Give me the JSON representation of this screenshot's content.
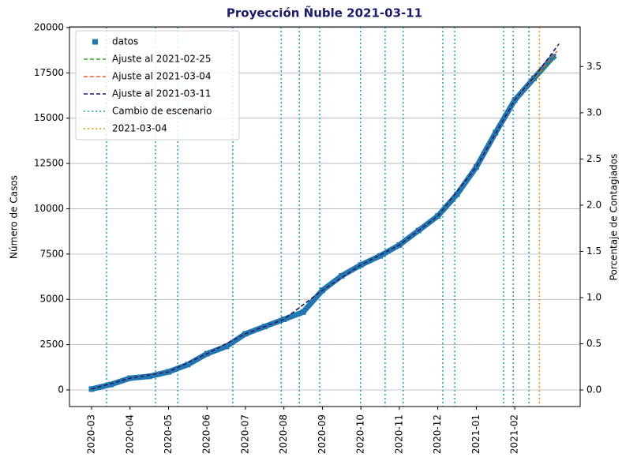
{
  "chart_data": {
    "type": "line",
    "title": "Proyección Ñuble 2021-03-11",
    "ylabel": "Número de Casos",
    "y2label": "Porcentaje de Contagiados",
    "xlim": [
      -0.575,
      12.7
    ],
    "xticks": [
      {
        "value": 0,
        "label": "2020-03"
      },
      {
        "value": 1,
        "label": "2020-04"
      },
      {
        "value": 2,
        "label": "2020-05"
      },
      {
        "value": 3,
        "label": "2020-06"
      },
      {
        "value": 4,
        "label": "2020-07"
      },
      {
        "value": 5,
        "label": "2020-08"
      },
      {
        "value": 6,
        "label": "2020-09"
      },
      {
        "value": 7,
        "label": "2020-10"
      },
      {
        "value": 8,
        "label": "2020-11"
      },
      {
        "value": 9,
        "label": "2020-12"
      },
      {
        "value": 10,
        "label": "2021-01"
      },
      {
        "value": 11,
        "label": "2021-02"
      }
    ],
    "ylim": [
      -915,
      20040
    ],
    "yticks": [
      0,
      2500,
      5000,
      7500,
      10000,
      12500,
      15000,
      17500,
      20000
    ],
    "y2lim": [
      -0.179,
      3.93
    ],
    "y2ticks": [
      {
        "value": 0,
        "label": "0.0"
      },
      0.5,
      {
        "value": 1,
        "label": "1.0"
      },
      1.5,
      {
        "value": 2,
        "label": "2.0"
      },
      2.5,
      {
        "value": 3,
        "label": "3.0"
      },
      3.5
    ],
    "grid": true,
    "legend": "upper left",
    "series": [
      {
        "name": "datos",
        "color": "#1f77b4",
        "marker": "square",
        "x": [
          0,
          0.5,
          1,
          1.5,
          2,
          2.5,
          3,
          3.5,
          4,
          4.5,
          5,
          5.5,
          6,
          6.5,
          7,
          7.5,
          8,
          8.5,
          9,
          9.5,
          10,
          10.5,
          11,
          11.5,
          12
        ],
        "values": [
          50,
          300,
          650,
          750,
          1000,
          1400,
          2000,
          2400,
          3100,
          3500,
          3900,
          4300,
          5500,
          6300,
          6900,
          7400,
          8000,
          8800,
          9600,
          10800,
          12300,
          14200,
          16000,
          17200,
          18400
        ]
      },
      {
        "name": "Ajuste al 2021-02-25",
        "color": "#2ca02c",
        "style": "dashed",
        "x": [
          0,
          1,
          2,
          3,
          4,
          5,
          6,
          7,
          8,
          9,
          10,
          11,
          11.5,
          12.1
        ],
        "values": [
          50,
          650,
          1000,
          2000,
          3100,
          3900,
          5500,
          6900,
          8000,
          9600,
          12300,
          16000,
          17150,
          18400
        ]
      },
      {
        "name": "Ajuste al 2021-03-04",
        "color": "#ff5722",
        "style": "dashed",
        "x": [
          0,
          1,
          2,
          3,
          4,
          5,
          6,
          7,
          8,
          9,
          10,
          11,
          11.5,
          12.1
        ],
        "values": [
          50,
          650,
          1000,
          2000,
          3100,
          3900,
          5500,
          6900,
          8000,
          9600,
          12300,
          16000,
          17200,
          18700
        ]
      },
      {
        "name": "Ajuste al 2021-03-11",
        "color": "#191970",
        "style": "dashed",
        "x": [
          0,
          1,
          2,
          3,
          4,
          5,
          6,
          7,
          8,
          9,
          10,
          11,
          11.5,
          12.15
        ],
        "values": [
          50,
          650,
          1000,
          2000,
          3100,
          3900,
          5500,
          6900,
          8000,
          9600,
          12300,
          16000,
          17250,
          19100
        ]
      }
    ],
    "vlines": [
      {
        "name": "Cambio de escenario",
        "color": "#17a2b8",
        "x": [
          0.39,
          1.66,
          2.24,
          3.67,
          4.93,
          5.4,
          5.93,
          6.99,
          7.63,
          8.1,
          9.13,
          9.44,
          10.71,
          10.96,
          11.37
        ]
      },
      {
        "name": "2021-03-04",
        "color": "#ff8c00",
        "x": [
          11.64
        ]
      }
    ]
  }
}
